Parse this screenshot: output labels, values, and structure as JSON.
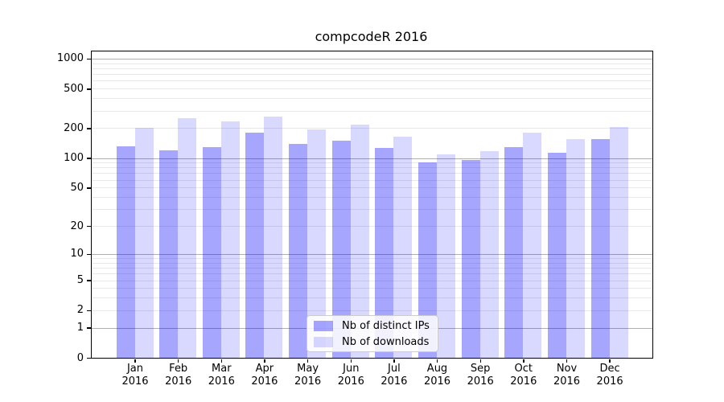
{
  "title": "compcodeR 2016",
  "chart_data": {
    "type": "bar",
    "title": "compcodeR 2016",
    "year_label": "2016",
    "categories": [
      "Jan",
      "Feb",
      "Mar",
      "Apr",
      "May",
      "Jun",
      "Jul",
      "Aug",
      "Sep",
      "Oct",
      "Nov",
      "Dec"
    ],
    "series": [
      {
        "name": "Nb of distinct IPs",
        "color": "rgba(0,0,255,0.35)",
        "values": [
          132,
          120,
          130,
          180,
          139,
          149,
          126,
          91,
          95,
          130,
          114,
          155
        ]
      },
      {
        "name": "Nb of downloads",
        "color": "rgba(0,0,255,0.15)",
        "values": [
          200,
          250,
          235,
          260,
          195,
          218,
          165,
          108,
          117,
          180,
          156,
          206
        ]
      }
    ],
    "xlabel": "",
    "ylabel": "",
    "y_ticks": [
      1000,
      500,
      200,
      100,
      50,
      20,
      10,
      5,
      2,
      1,
      0
    ],
    "y_scale": "log10(value+1)",
    "ylim": [
      0,
      1185
    ],
    "grid": {
      "major_color": "#b0b0b0",
      "minor_color": "#e8e8e8",
      "major_lines": [
        1,
        10,
        100,
        1000
      ],
      "minor_lines": [
        2,
        3,
        4,
        5,
        6,
        7,
        8,
        9,
        20,
        30,
        40,
        50,
        60,
        70,
        80,
        90,
        200,
        300,
        400,
        500,
        600,
        700,
        800,
        900
      ]
    },
    "legend": {
      "position": "lower center"
    },
    "axis_color": "#000000",
    "background_color": "#ffffff"
  }
}
